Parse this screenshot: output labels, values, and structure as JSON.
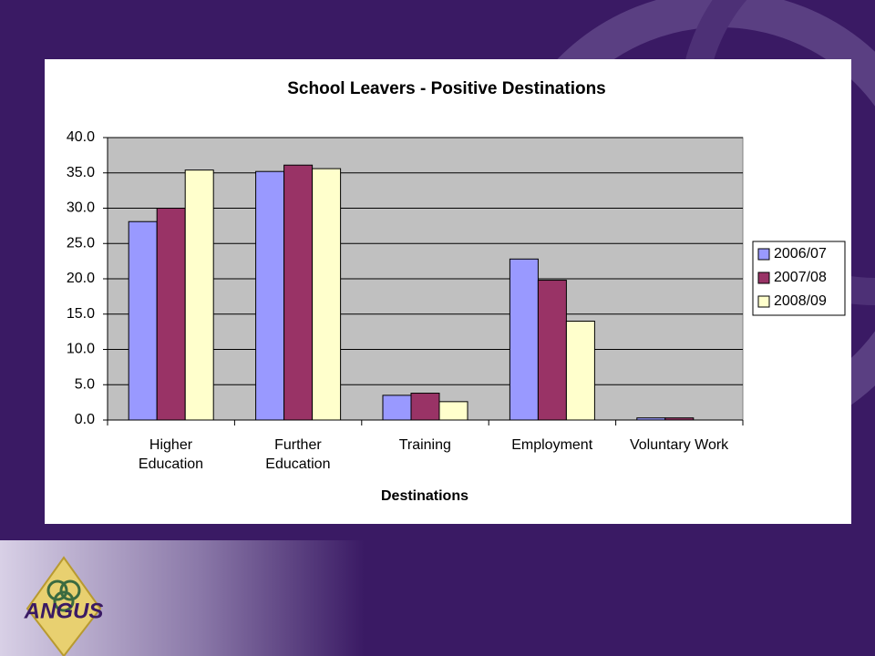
{
  "logo": "ANGUS",
  "chart_data": {
    "type": "bar",
    "title": "School Leavers - Positive Destinations",
    "x_label": "Destinations",
    "categories": [
      "Higher\nEducation",
      "Further\nEducation",
      "Training",
      "Employment",
      "Voluntary Work"
    ],
    "series": [
      {
        "name": "2006/07",
        "color": "#9999ff",
        "values": [
          28.1,
          35.2,
          3.5,
          22.8,
          0.3
        ]
      },
      {
        "name": "2007/08",
        "color": "#993366",
        "values": [
          30.0,
          36.1,
          3.8,
          19.8,
          0.3
        ]
      },
      {
        "name": "2008/09",
        "color": "#ffffcc",
        "values": [
          35.4,
          35.6,
          2.6,
          14.0,
          0.0
        ]
      }
    ],
    "ylim": [
      0,
      40
    ],
    "yticks": [
      {
        "value": 0,
        "label": "0.0"
      },
      {
        "value": 5,
        "label": "5.0"
      },
      {
        "value": 10,
        "label": "10.0"
      },
      {
        "value": 15,
        "label": "15.0"
      },
      {
        "value": 20,
        "label": "20.0"
      },
      {
        "value": 25,
        "label": "25.0"
      },
      {
        "value": 30,
        "label": "30.0"
      },
      {
        "value": 35,
        "label": "35.0"
      },
      {
        "value": 40,
        "label": "40.0"
      }
    ],
    "grid": true,
    "legend": "right",
    "plot_background": "#c0c0c0"
  }
}
